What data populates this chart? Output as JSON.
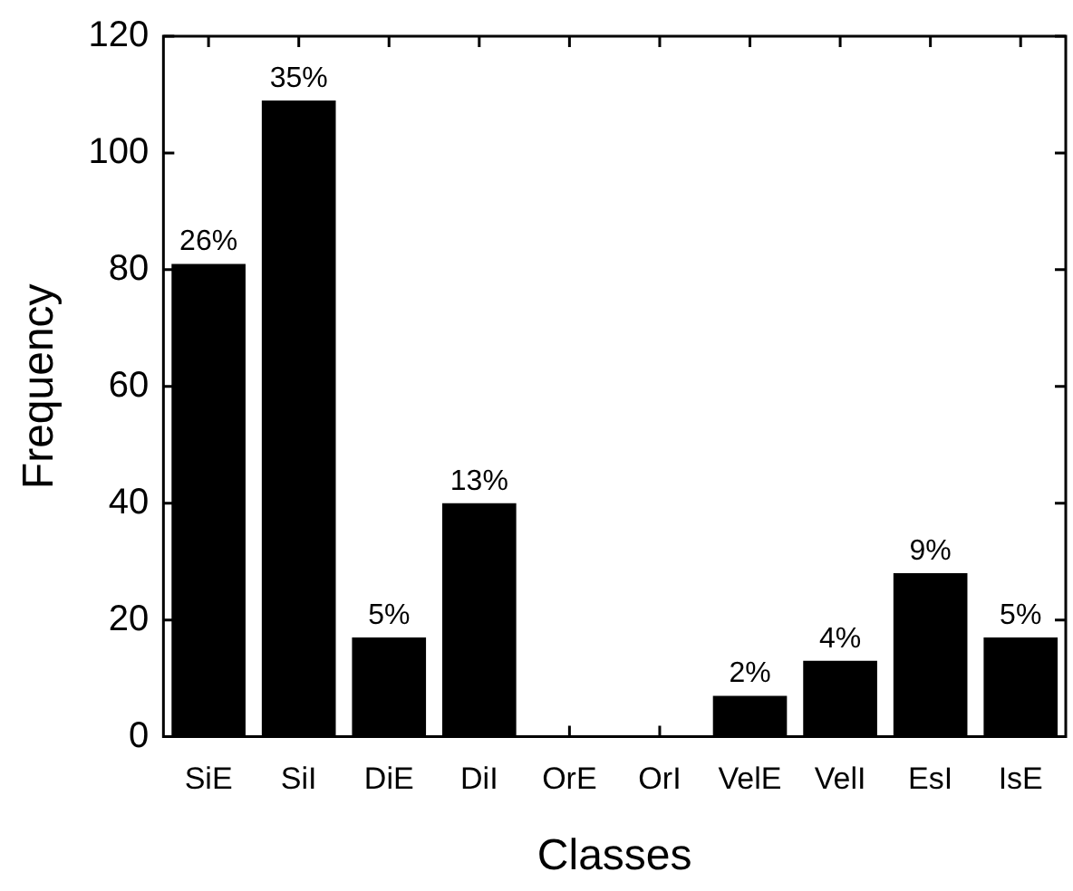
{
  "chart_data": {
    "type": "bar",
    "xlabel": "Classes",
    "ylabel": "Frequency",
    "categories": [
      "SiE",
      "SiI",
      "DiE",
      "DiI",
      "OrE",
      "OrI",
      "VelE",
      "VelI",
      "EsI",
      "IsE"
    ],
    "values": [
      81,
      109,
      17,
      40,
      0,
      0,
      7,
      13,
      28,
      17
    ],
    "annotations": [
      {
        "text": "26%",
        "x": "SiE",
        "y": 81
      },
      {
        "text": "35%",
        "x": "SiI",
        "y": 109
      },
      {
        "text": "5%",
        "x": "DiE",
        "y": 17
      },
      {
        "text": "13%",
        "x": "DiI",
        "y": 40
      },
      {
        "text": "2%",
        "x": "VelE",
        "y": 7
      },
      {
        "text": "4%",
        "x": "VelI",
        "y": 13
      },
      {
        "text": "9%",
        "x": "EsI",
        "y": 28
      },
      {
        "text": "5%",
        "x": "IsE",
        "y": 17
      }
    ],
    "color": "#000000",
    "ylim": [
      0,
      120
    ],
    "yticks": [
      0,
      20,
      40,
      60,
      80,
      100,
      120
    ],
    "grid": false,
    "legend": false
  }
}
